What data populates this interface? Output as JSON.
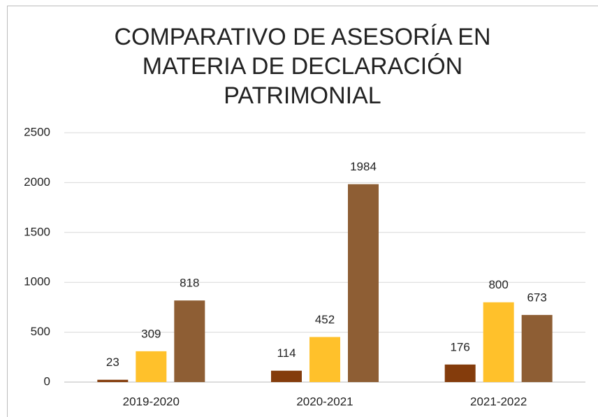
{
  "chart_data": {
    "type": "bar",
    "title": [
      "COMPARATIVO DE ASESORÍA EN",
      "MATERIA DE DECLARACIÓN",
      "PATRIMONIAL"
    ],
    "categories": [
      "2019-2020",
      "2020-2021",
      "2021-2022"
    ],
    "series": [
      {
        "color": "#843c0c",
        "values": [
          23,
          114,
          176
        ]
      },
      {
        "color": "#ffc12b",
        "values": [
          309,
          452,
          800
        ]
      },
      {
        "color": "#8e5e34",
        "values": [
          818,
          1984,
          673
        ]
      }
    ],
    "ylim": [
      0,
      2500
    ],
    "yticks": [
      0,
      500,
      1000,
      1500,
      2000,
      2500
    ],
    "grid": true
  }
}
